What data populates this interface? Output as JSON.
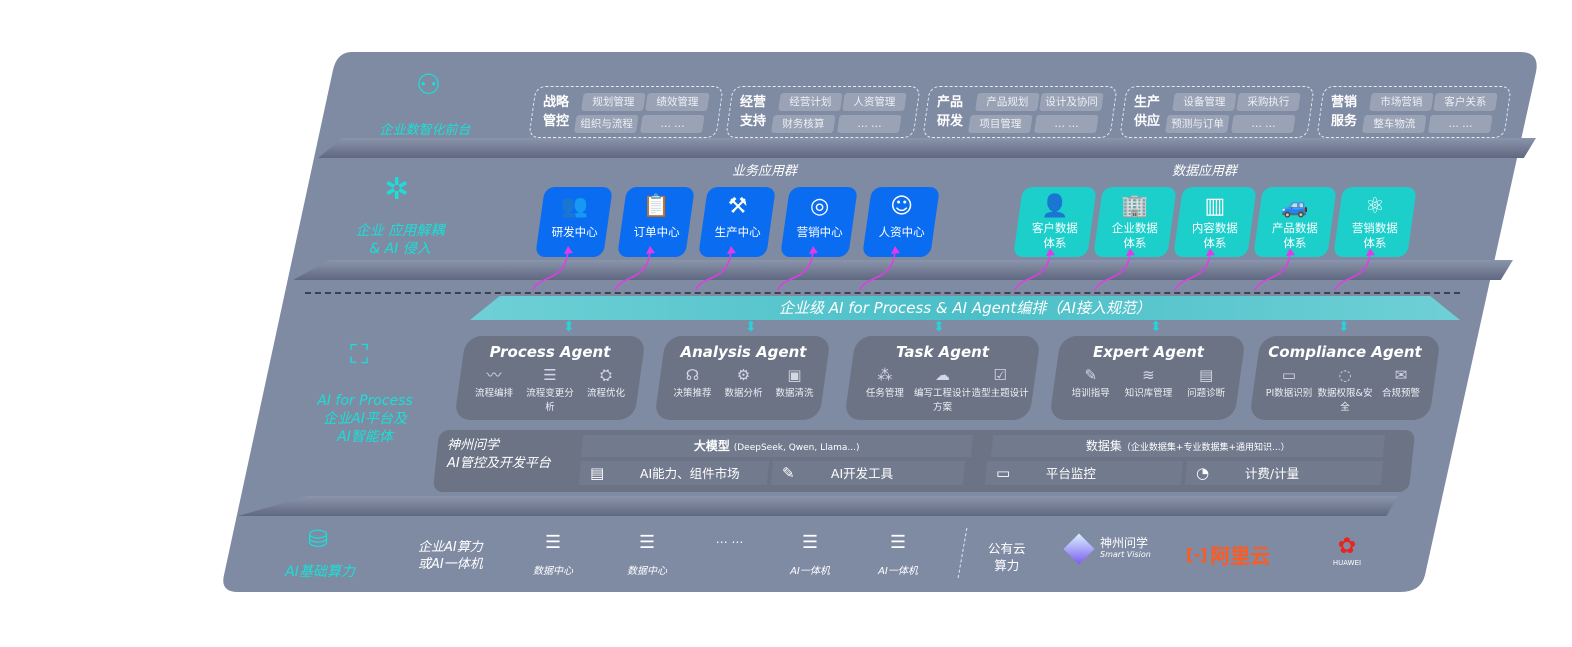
{
  "colors": {
    "panel": "#7f8aa3",
    "accent": "#19e0d6",
    "business_tile": "#0a6cf0",
    "data_tile": "#1ccfcb",
    "connector": "#e23be6",
    "agent_box": "#6b7385"
  },
  "front": {
    "icon": "brain-icon",
    "label": "企业数智化前台",
    "groups": [
      {
        "title": "战略管控",
        "items": [
          "规划管理",
          "绩效管理",
          "组织与流程",
          "… …"
        ]
      },
      {
        "title": "经营支持",
        "items": [
          "经营计划",
          "人资管理",
          "财务核算",
          "… …"
        ]
      },
      {
        "title": "产品研发",
        "items": [
          "产品规划",
          "设计及协同",
          "项目管理",
          "… …"
        ]
      },
      {
        "title": "生产供应",
        "items": [
          "设备管理",
          "采购执行",
          "预测与订单",
          "… …"
        ]
      },
      {
        "title": "营销服务",
        "items": [
          "市场营销",
          "客户关系",
          "整车物流",
          "… …"
        ]
      }
    ]
  },
  "apps": {
    "side_icon": "molecule-icon",
    "side_lines": [
      "企业 应用解耦",
      "& AI 侵入"
    ],
    "business_title": "业务应用群",
    "business": [
      {
        "label": "研发中心",
        "icon": "users-icon"
      },
      {
        "label": "订单中心",
        "icon": "clipboard-icon"
      },
      {
        "label": "生产中心",
        "icon": "factory-icon"
      },
      {
        "label": "营销中心",
        "icon": "target-icon"
      },
      {
        "label": "人资中心",
        "icon": "person-icon"
      }
    ],
    "data_title": "数据应用群",
    "data": [
      {
        "label": "客户数据体系",
        "icon": "user-icon"
      },
      {
        "label": "企业数据体系",
        "icon": "building-icon"
      },
      {
        "label": "内容数据体系",
        "icon": "books-icon"
      },
      {
        "label": "产品数据体系",
        "icon": "car-icon"
      },
      {
        "label": "营销数据体系",
        "icon": "atom-icon"
      }
    ]
  },
  "banner": "企业级 AI for Process & AI Agent编排（AI接入规范）",
  "ai": {
    "side_icon": "face-scan-icon",
    "side_lines": [
      "AI for Process",
      "企业AI平台及",
      "AI智能体"
    ],
    "agents": [
      {
        "name": "Process Agent",
        "items": [
          "流程编排",
          "流程变更分析",
          "流程优化"
        ]
      },
      {
        "name": "Analysis Agent",
        "items": [
          "决策推荐",
          "数据分析",
          "数据清洗"
        ]
      },
      {
        "name": "Task Agent",
        "items": [
          "任务管理",
          "编写工程设计方案",
          "造型主题设计"
        ]
      },
      {
        "name": "Expert Agent",
        "items": [
          "培训指导",
          "知识库管理",
          "问题诊断"
        ]
      },
      {
        "name": "Compliance Agent",
        "items": [
          "PI数据识别",
          "数据权限&安全",
          "合规预警"
        ]
      }
    ],
    "platform": {
      "title_lines": [
        "神州问学",
        "AI管控及开发平台"
      ],
      "model": "大模型",
      "model_note": "(DeepSeek, Qwen, Llama...)",
      "dataset": "数据集",
      "dataset_note": "（企业数据集+专业数据集+通用知识...）",
      "tools": [
        "AI能力、组件市场",
        "AI开发工具",
        "平台监控",
        "计费/计量"
      ]
    }
  },
  "infra": {
    "side_icon": "database-icon",
    "side_label": "AI基础算力",
    "label_lines": [
      "企业AI算力",
      "或AI一体机"
    ],
    "servers": [
      "数据中心",
      "数据中心",
      "… …",
      "AI一体机",
      "AI一体机"
    ],
    "public_lines": [
      "公有云",
      "算力"
    ],
    "logos": {
      "smart_vision_cn": "神州问学",
      "smart_vision_en": "Smart Vision",
      "aliyun": "阿里云",
      "huawei": "HUAWEI"
    }
  }
}
